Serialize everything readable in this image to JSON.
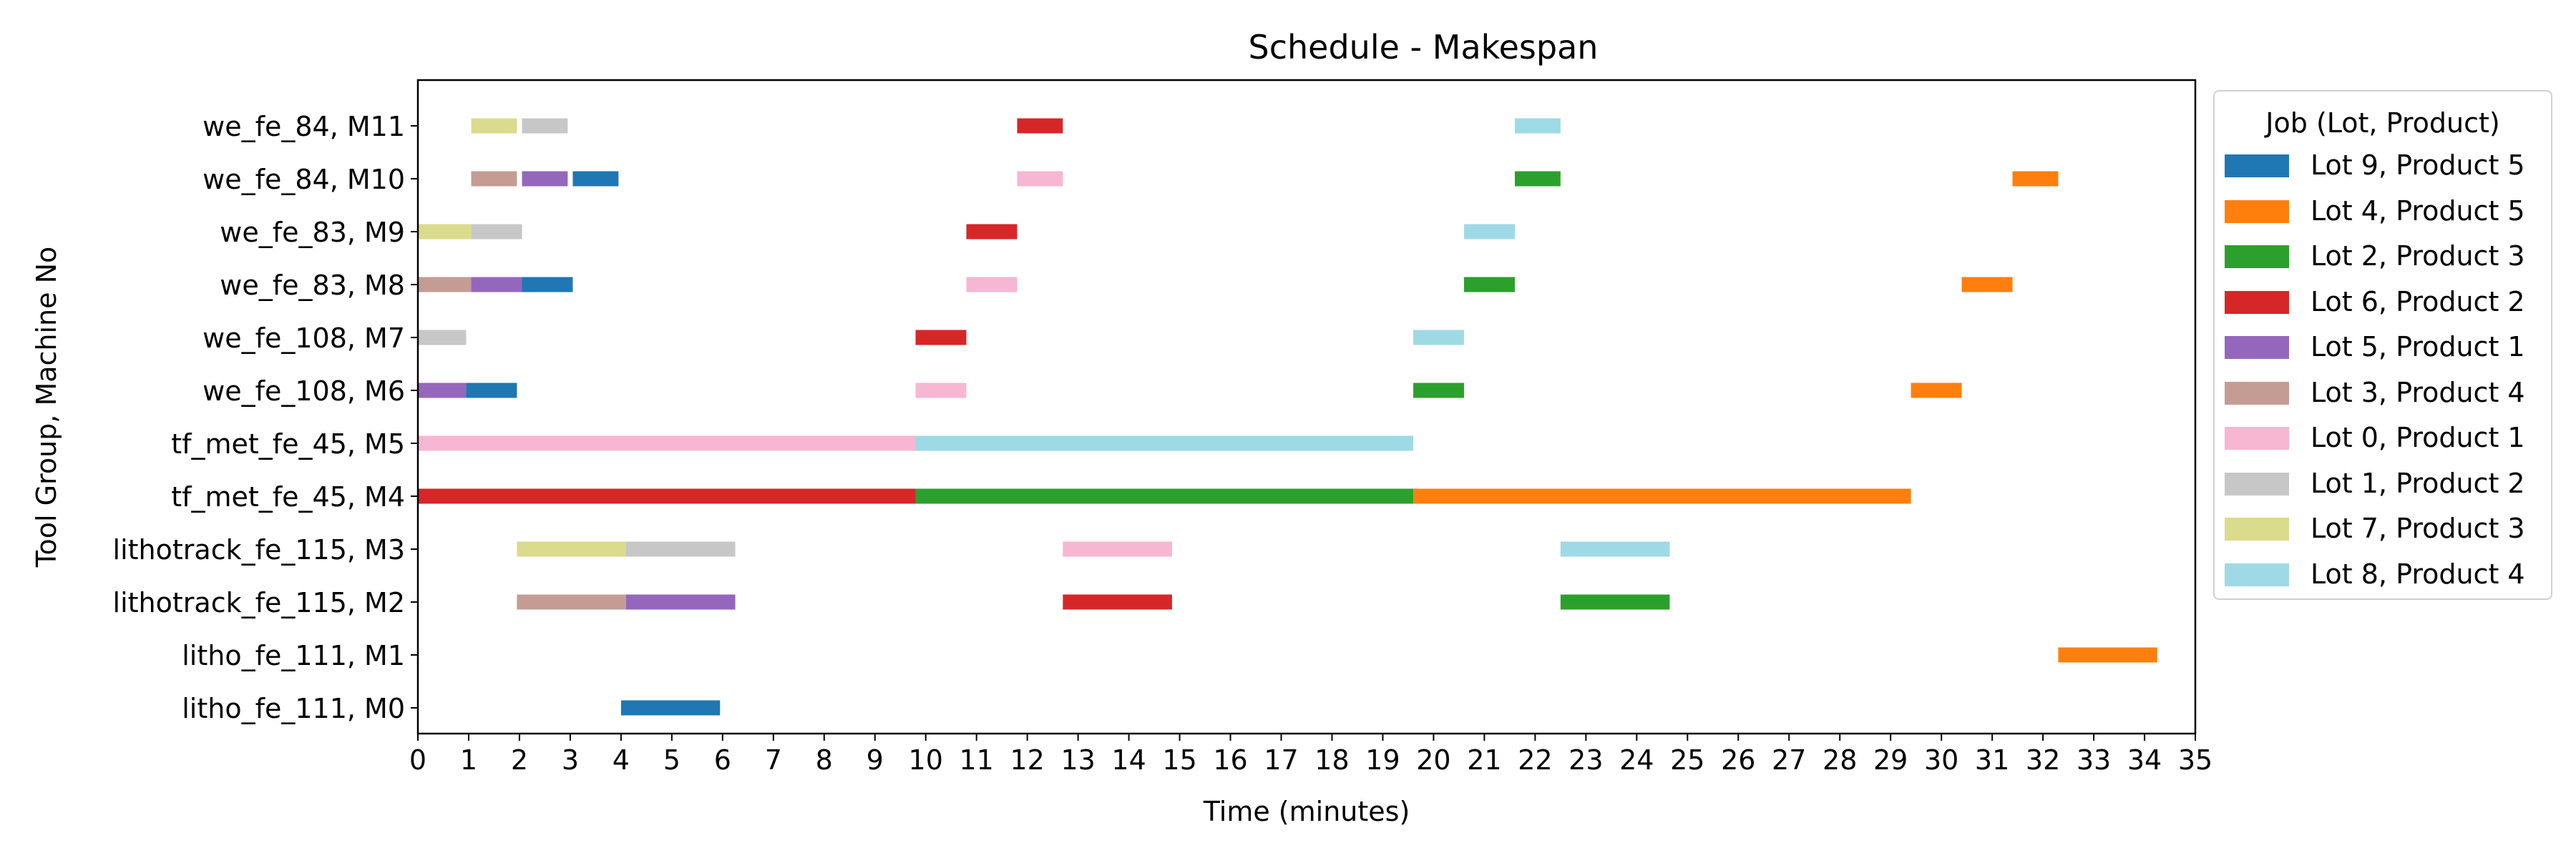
{
  "chart_data": {
    "type": "gantt",
    "title": "Schedule - Makespan",
    "xlabel": "Time (minutes)",
    "ylabel": "Tool Group, Machine No",
    "xlim": [
      0,
      35
    ],
    "x_ticks": [
      0,
      1,
      2,
      3,
      4,
      5,
      6,
      7,
      8,
      9,
      10,
      11,
      12,
      13,
      14,
      15,
      16,
      17,
      18,
      19,
      20,
      21,
      22,
      23,
      24,
      25,
      26,
      27,
      28,
      29,
      30,
      31,
      32,
      33,
      34,
      35
    ],
    "grid": false,
    "legend_position": "outside-right",
    "legend_title": "Job (Lot, Product)",
    "rows": [
      "litho_fe_111, M0",
      "litho_fe_111, M1",
      "lithotrack_fe_115, M2",
      "lithotrack_fe_115, M3",
      "tf_met_fe_45, M4",
      "tf_met_fe_45, M5",
      "we_fe_108, M6",
      "we_fe_108, M7",
      "we_fe_83, M8",
      "we_fe_83, M9",
      "we_fe_84, M10",
      "we_fe_84, M11"
    ],
    "jobs": [
      {
        "name": "Lot 9, Product 5",
        "color": "#1f77b4"
      },
      {
        "name": "Lot 4, Product 5",
        "color": "#ff7f0e"
      },
      {
        "name": "Lot 2, Product 3",
        "color": "#2ca02c"
      },
      {
        "name": "Lot 6, Product 2",
        "color": "#d62728"
      },
      {
        "name": "Lot 5, Product 1",
        "color": "#9467bd"
      },
      {
        "name": "Lot 3, Product 4",
        "color": "#c49c94"
      },
      {
        "name": "Lot 0, Product 1",
        "color": "#f7b6d2"
      },
      {
        "name": "Lot 1, Product 2",
        "color": "#c7c7c7"
      },
      {
        "name": "Lot 7, Product 3",
        "color": "#dbdb8d"
      },
      {
        "name": "Lot 8, Product 4",
        "color": "#9edae5"
      }
    ],
    "tasks": [
      {
        "row": "litho_fe_111, M0",
        "job": "Lot 9, Product 5",
        "start": 4.0,
        "end": 5.95
      },
      {
        "row": "litho_fe_111, M1",
        "job": "Lot 4, Product 5",
        "start": 32.3,
        "end": 34.25
      },
      {
        "row": "lithotrack_fe_115, M2",
        "job": "Lot 3, Product 4",
        "start": 1.95,
        "end": 4.1
      },
      {
        "row": "lithotrack_fe_115, M2",
        "job": "Lot 5, Product 1",
        "start": 4.1,
        "end": 6.25
      },
      {
        "row": "lithotrack_fe_115, M2",
        "job": "Lot 6, Product 2",
        "start": 12.7,
        "end": 14.85
      },
      {
        "row": "lithotrack_fe_115, M2",
        "job": "Lot 2, Product 3",
        "start": 22.5,
        "end": 24.65
      },
      {
        "row": "lithotrack_fe_115, M3",
        "job": "Lot 7, Product 3",
        "start": 1.95,
        "end": 4.1
      },
      {
        "row": "lithotrack_fe_115, M3",
        "job": "Lot 1, Product 2",
        "start": 4.1,
        "end": 6.25
      },
      {
        "row": "lithotrack_fe_115, M3",
        "job": "Lot 0, Product 1",
        "start": 12.7,
        "end": 14.85
      },
      {
        "row": "lithotrack_fe_115, M3",
        "job": "Lot 8, Product 4",
        "start": 22.5,
        "end": 24.65
      },
      {
        "row": "tf_met_fe_45, M4",
        "job": "Lot 6, Product 2",
        "start": 0.0,
        "end": 9.8
      },
      {
        "row": "tf_met_fe_45, M4",
        "job": "Lot 2, Product 3",
        "start": 9.8,
        "end": 19.6
      },
      {
        "row": "tf_met_fe_45, M4",
        "job": "Lot 4, Product 5",
        "start": 19.6,
        "end": 29.4
      },
      {
        "row": "tf_met_fe_45, M5",
        "job": "Lot 0, Product 1",
        "start": 0.0,
        "end": 9.8
      },
      {
        "row": "tf_met_fe_45, M5",
        "job": "Lot 8, Product 4",
        "start": 9.8,
        "end": 19.6
      },
      {
        "row": "we_fe_108, M6",
        "job": "Lot 5, Product 1",
        "start": 0.0,
        "end": 0.95
      },
      {
        "row": "we_fe_108, M6",
        "job": "Lot 9, Product 5",
        "start": 0.95,
        "end": 1.95
      },
      {
        "row": "we_fe_108, M6",
        "job": "Lot 0, Product 1",
        "start": 9.8,
        "end": 10.8
      },
      {
        "row": "we_fe_108, M6",
        "job": "Lot 2, Product 3",
        "start": 19.6,
        "end": 20.6
      },
      {
        "row": "we_fe_108, M6",
        "job": "Lot 4, Product 5",
        "start": 29.4,
        "end": 30.4
      },
      {
        "row": "we_fe_108, M7",
        "job": "Lot 1, Product 2",
        "start": 0.0,
        "end": 0.95
      },
      {
        "row": "we_fe_108, M7",
        "job": "Lot 6, Product 2",
        "start": 9.8,
        "end": 10.8
      },
      {
        "row": "we_fe_108, M7",
        "job": "Lot 8, Product 4",
        "start": 19.6,
        "end": 20.6
      },
      {
        "row": "we_fe_83, M8",
        "job": "Lot 3, Product 4",
        "start": 0.0,
        "end": 1.05
      },
      {
        "row": "we_fe_83, M8",
        "job": "Lot 5, Product 1",
        "start": 1.05,
        "end": 2.05
      },
      {
        "row": "we_fe_83, M8",
        "job": "Lot 9, Product 5",
        "start": 2.05,
        "end": 3.05
      },
      {
        "row": "we_fe_83, M8",
        "job": "Lot 0, Product 1",
        "start": 10.8,
        "end": 11.8
      },
      {
        "row": "we_fe_83, M8",
        "job": "Lot 2, Product 3",
        "start": 20.6,
        "end": 21.6
      },
      {
        "row": "we_fe_83, M8",
        "job": "Lot 4, Product 5",
        "start": 30.4,
        "end": 31.4
      },
      {
        "row": "we_fe_83, M9",
        "job": "Lot 7, Product 3",
        "start": 0.0,
        "end": 1.05
      },
      {
        "row": "we_fe_83, M9",
        "job": "Lot 1, Product 2",
        "start": 1.05,
        "end": 2.05
      },
      {
        "row": "we_fe_83, M9",
        "job": "Lot 6, Product 2",
        "start": 10.8,
        "end": 11.8
      },
      {
        "row": "we_fe_83, M9",
        "job": "Lot 8, Product 4",
        "start": 20.6,
        "end": 21.6
      },
      {
        "row": "we_fe_84, M10",
        "job": "Lot 3, Product 4",
        "start": 1.05,
        "end": 1.95
      },
      {
        "row": "we_fe_84, M10",
        "job": "Lot 5, Product 1",
        "start": 2.05,
        "end": 2.95
      },
      {
        "row": "we_fe_84, M10",
        "job": "Lot 9, Product 5",
        "start": 3.05,
        "end": 3.95
      },
      {
        "row": "we_fe_84, M10",
        "job": "Lot 0, Product 1",
        "start": 11.8,
        "end": 12.7
      },
      {
        "row": "we_fe_84, M10",
        "job": "Lot 2, Product 3",
        "start": 21.6,
        "end": 22.5
      },
      {
        "row": "we_fe_84, M10",
        "job": "Lot 4, Product 5",
        "start": 31.4,
        "end": 32.3
      },
      {
        "row": "we_fe_84, M11",
        "job": "Lot 7, Product 3",
        "start": 1.05,
        "end": 1.95
      },
      {
        "row": "we_fe_84, M11",
        "job": "Lot 1, Product 2",
        "start": 2.05,
        "end": 2.95
      },
      {
        "row": "we_fe_84, M11",
        "job": "Lot 6, Product 2",
        "start": 11.8,
        "end": 12.7
      },
      {
        "row": "we_fe_84, M11",
        "job": "Lot 8, Product 4",
        "start": 21.6,
        "end": 22.5
      }
    ]
  }
}
